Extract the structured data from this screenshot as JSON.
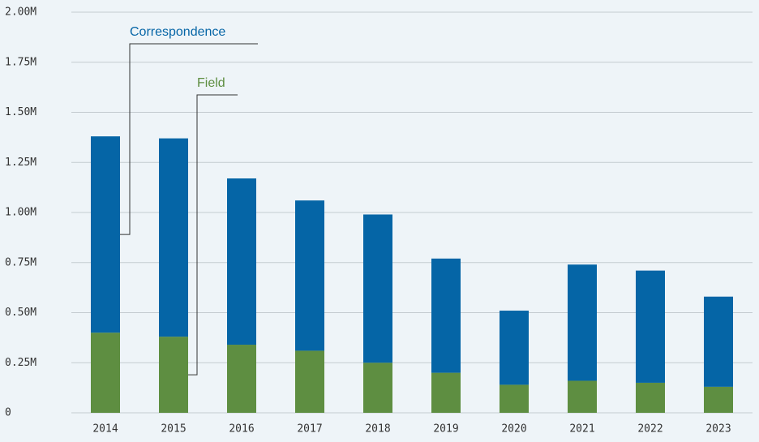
{
  "chart_data": {
    "type": "stacked-bar",
    "categories": [
      "2014",
      "2015",
      "2016",
      "2017",
      "2018",
      "2019",
      "2020",
      "2021",
      "2022",
      "2023"
    ],
    "series": [
      {
        "name": "Field",
        "color": "#5e8e41",
        "values": [
          0.4,
          0.38,
          0.34,
          0.31,
          0.25,
          0.2,
          0.14,
          0.16,
          0.15,
          0.13
        ]
      },
      {
        "name": "Correspondence",
        "color": "#0565a6",
        "values": [
          0.98,
          0.99,
          0.83,
          0.75,
          0.74,
          0.57,
          0.37,
          0.58,
          0.56,
          0.45
        ]
      }
    ],
    "ylim": [
      0,
      2
    ],
    "yticks": [
      0,
      {
        "value": 0.25,
        "label": "0.25M"
      },
      {
        "value": 0.5,
        "label": "0.50M"
      },
      {
        "value": 0.75,
        "label": "0.75M"
      },
      {
        "value": 1,
        "label": "1.00M"
      },
      {
        "value": 1.25,
        "label": "1.25M"
      },
      {
        "value": 1.5,
        "label": "1.50M"
      },
      {
        "value": 1.75,
        "label": "1.75M"
      },
      {
        "value": 2,
        "label": "2.00M"
      }
    ],
    "grid": true
  }
}
